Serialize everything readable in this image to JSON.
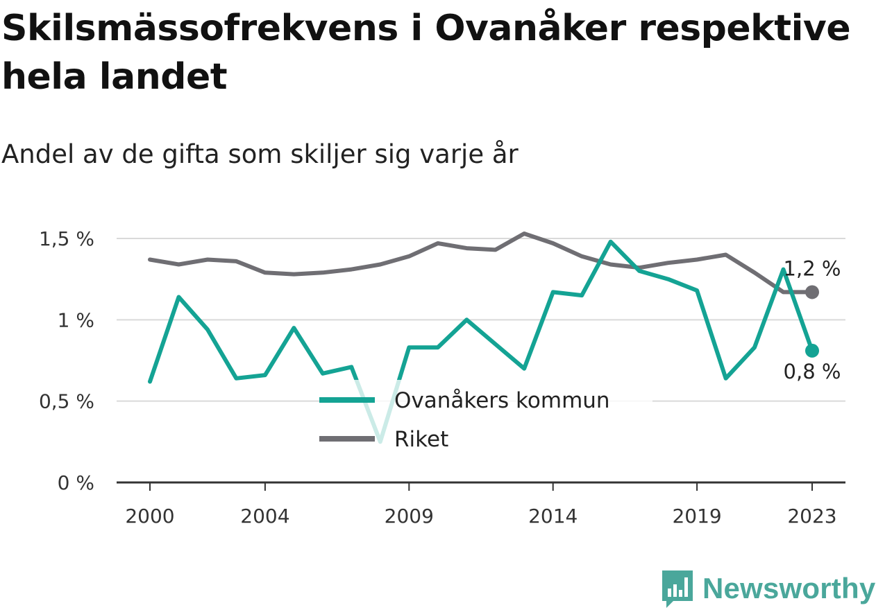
{
  "title": "Skilsmässofrekvens i Ovanåker respektive hela landet",
  "subtitle": "Andel av de gifta som skiljer sig varje år",
  "brand": {
    "name": "Newsworthy",
    "icon": "bar-chart-speech-bubble-icon",
    "color": "#4aa79b"
  },
  "chart_data": {
    "type": "line",
    "x": [
      2000,
      2001,
      2002,
      2003,
      2004,
      2005,
      2006,
      2007,
      2008,
      2009,
      2010,
      2011,
      2012,
      2013,
      2014,
      2015,
      2016,
      2017,
      2018,
      2019,
      2020,
      2021,
      2022,
      2023
    ],
    "x_ticks": [
      "2000",
      "2004",
      "2009",
      "2014",
      "2019",
      "2023"
    ],
    "y_ticks": [
      "0 %",
      "0,5 %",
      "1 %",
      "1,5 %"
    ],
    "y_tick_values": [
      0,
      0.5,
      1,
      1.5
    ],
    "ylim": [
      0,
      1.5
    ],
    "xlabel": "",
    "ylabel": "",
    "grid": "horizontal",
    "legend_position": "center-bottom",
    "series": [
      {
        "name": "Ovanåkers kommun",
        "color": "#14a394",
        "values": [
          0.62,
          1.14,
          0.94,
          0.64,
          0.66,
          0.95,
          0.67,
          0.71,
          0.25,
          0.83,
          0.83,
          1.0,
          0.85,
          0.7,
          1.17,
          1.15,
          1.48,
          1.3,
          1.25,
          1.18,
          0.64,
          0.83,
          1.31,
          0.81
        ],
        "end_label": "0,8 %"
      },
      {
        "name": "Riket",
        "color": "#6f6e73",
        "values": [
          1.37,
          1.34,
          1.37,
          1.36,
          1.29,
          1.28,
          1.29,
          1.31,
          1.34,
          1.39,
          1.47,
          1.44,
          1.43,
          1.53,
          1.47,
          1.39,
          1.34,
          1.32,
          1.35,
          1.37,
          1.4,
          1.29,
          1.17,
          1.17
        ],
        "end_label": "1,2 %"
      }
    ]
  }
}
